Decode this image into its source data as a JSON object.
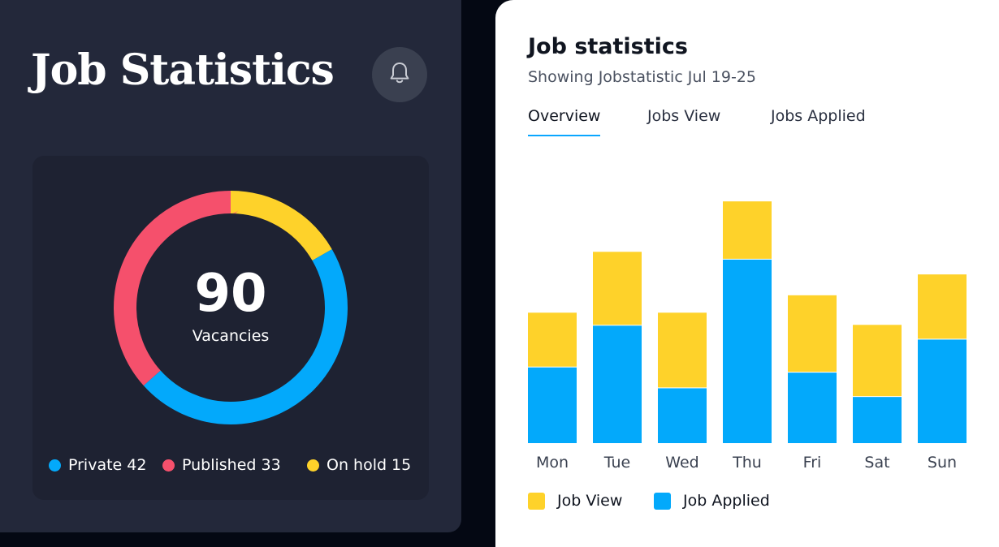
{
  "left": {
    "title": "Job Statistics",
    "donut": {
      "total": "90",
      "caption": "Vacancies",
      "segments": [
        {
          "label": "Private",
          "value": 42,
          "color": "#03a9fb"
        },
        {
          "label": "Published",
          "value": 33,
          "color": "#f5506c"
        },
        {
          "label": "On hold",
          "value": 15,
          "color": "#fed22a"
        }
      ]
    },
    "legend": [
      {
        "label": "Private",
        "count": "42"
      },
      {
        "label": "Published",
        "count": "33"
      },
      {
        "label": "On hold",
        "count": "15"
      }
    ]
  },
  "right": {
    "title": "Job statistics",
    "subtitle": "Showing Jobstatistic Jul 19-25",
    "tabs": [
      {
        "label": "Overview",
        "active": true
      },
      {
        "label": "Jobs View",
        "active": false
      },
      {
        "label": "Jobs Applied",
        "active": false
      }
    ],
    "legend": [
      {
        "label": "Job View",
        "color": "#fed22a"
      },
      {
        "label": "Job Applied",
        "color": "#03a9fb"
      }
    ]
  },
  "chart_data": {
    "type": "bar",
    "stacked": true,
    "categories": [
      "Mon",
      "Tue",
      "Wed",
      "Thu",
      "Fri",
      "Sat",
      "Sun"
    ],
    "series": [
      {
        "name": "Job Applied",
        "values": [
          88,
          136,
          64,
          212,
          82,
          54,
          120
        ],
        "color": "#03a9fb"
      },
      {
        "name": "Job View",
        "values": [
          62,
          84,
          86,
          66,
          88,
          82,
          74
        ],
        "color": "#fed22a"
      }
    ],
    "ylim": [
      0,
      280
    ],
    "grid": false,
    "legend_position": "bottom"
  }
}
